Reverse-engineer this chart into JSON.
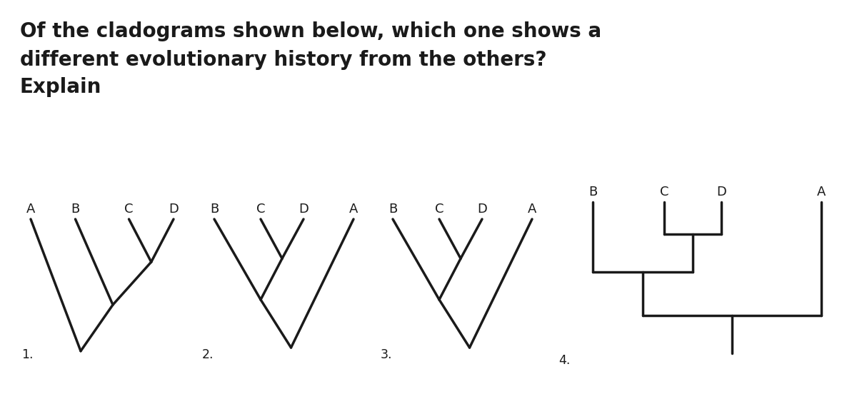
{
  "title_lines": [
    "Of the cladograms shown below, which one shows a",
    "different evolutionary history from the others?",
    "Explain"
  ],
  "title_fontsize": 20,
  "title_fontweight": "bold",
  "title_color": "#1a1a1a",
  "bg_color": "#ffffff",
  "line_color": "#1a1a1a",
  "line_width": 2.5,
  "label_fontsize": 13,
  "number_fontsize": 12.5,
  "clad1_labels": [
    "A",
    "B",
    "C",
    "D"
  ],
  "clad2_labels": [
    "B",
    "C",
    "D",
    "A"
  ],
  "clad3_labels": [
    "B",
    "C",
    "D",
    "A"
  ],
  "clad4_labels": [
    "B",
    "C",
    "D",
    "A"
  ],
  "clad_numbers": [
    "1.",
    "2.",
    "3.",
    "4."
  ]
}
